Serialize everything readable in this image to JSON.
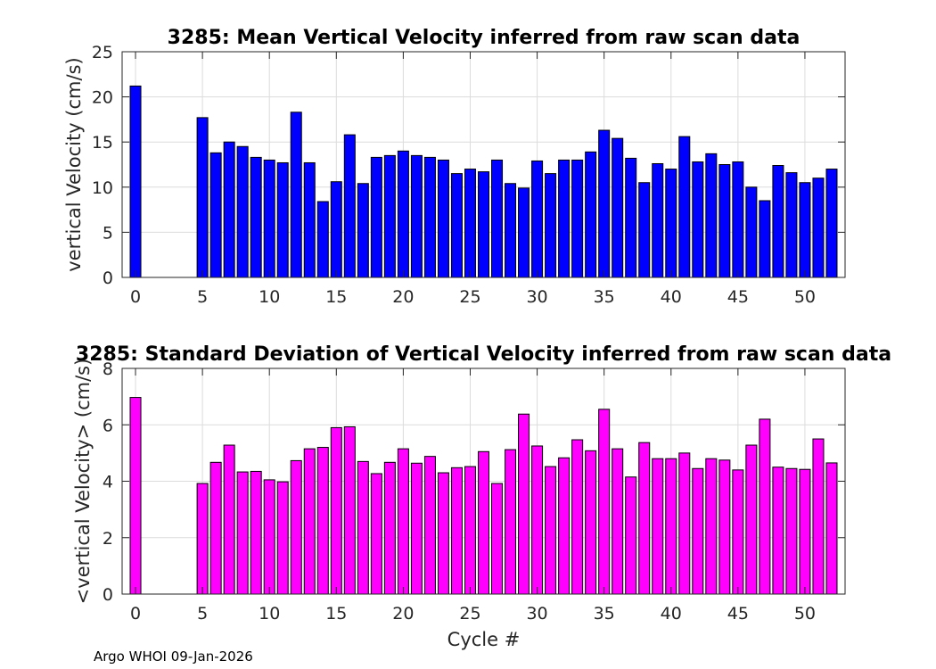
{
  "chart_data": [
    {
      "type": "bar",
      "title": "3285: Mean Vertical Velocity inferred from raw scan data",
      "xlabel": "",
      "ylabel": "vertical Velocity (cm/s)",
      "xlim": [
        -1,
        53
      ],
      "ylim": [
        0,
        25
      ],
      "xticks": [
        0,
        5,
        10,
        15,
        20,
        25,
        30,
        35,
        40,
        45,
        50
      ],
      "yticks": [
        0,
        5,
        10,
        15,
        20,
        25
      ],
      "grid": true,
      "bar_color": "#0000ff",
      "edge_color": "#000000",
      "x": [
        0,
        5,
        6,
        7,
        8,
        9,
        10,
        11,
        12,
        13,
        14,
        15,
        16,
        17,
        18,
        19,
        20,
        21,
        22,
        23,
        24,
        25,
        26,
        27,
        28,
        29,
        30,
        31,
        32,
        33,
        34,
        35,
        36,
        37,
        38,
        39,
        40,
        41,
        42,
        43,
        44,
        45,
        46,
        47,
        48,
        49,
        50,
        51,
        52
      ],
      "values": [
        21.2,
        17.7,
        13.8,
        15.0,
        14.5,
        13.3,
        13.0,
        12.7,
        18.3,
        12.7,
        8.4,
        10.6,
        15.8,
        10.4,
        13.3,
        13.5,
        14.0,
        13.5,
        13.3,
        13.0,
        11.5,
        12.0,
        11.7,
        13.0,
        10.4,
        9.9,
        12.9,
        11.5,
        13.0,
        13.0,
        13.9,
        16.3,
        15.4,
        13.2,
        10.5,
        12.6,
        12.0,
        15.6,
        12.8,
        13.7,
        12.5,
        12.8,
        10.0,
        8.5,
        12.4,
        11.6,
        10.5,
        11.0,
        12.0
      ]
    },
    {
      "type": "bar",
      "title": "3285: Standard Deviation of Vertical Velocity inferred from raw scan data",
      "xlabel": "Cycle #",
      "ylabel": "<vertical Velocity> (cm/s)",
      "xlim": [
        -1,
        53
      ],
      "ylim": [
        0,
        8
      ],
      "xticks": [
        0,
        5,
        10,
        15,
        20,
        25,
        30,
        35,
        40,
        45,
        50
      ],
      "yticks": [
        0,
        2,
        4,
        6,
        8
      ],
      "grid": true,
      "bar_color": "#ff00ff",
      "edge_color": "#000000",
      "x": [
        0,
        5,
        6,
        7,
        8,
        9,
        10,
        11,
        12,
        13,
        14,
        15,
        16,
        17,
        18,
        19,
        20,
        21,
        22,
        23,
        24,
        25,
        26,
        27,
        28,
        29,
        30,
        31,
        32,
        33,
        34,
        35,
        36,
        37,
        38,
        39,
        40,
        41,
        42,
        43,
        44,
        45,
        46,
        47,
        48,
        49,
        50,
        51,
        52
      ],
      "values": [
        6.97,
        3.92,
        4.67,
        5.28,
        4.33,
        4.35,
        4.05,
        3.98,
        4.73,
        5.15,
        5.2,
        5.9,
        5.93,
        4.7,
        4.27,
        4.67,
        5.15,
        4.64,
        4.88,
        4.3,
        4.48,
        4.52,
        5.05,
        3.92,
        5.12,
        6.38,
        5.25,
        4.52,
        4.83,
        5.47,
        5.08,
        6.55,
        5.15,
        4.15,
        5.37,
        4.8,
        4.8,
        5.0,
        4.45,
        4.8,
        4.75,
        4.4,
        5.28,
        6.2,
        4.5,
        4.45,
        4.42,
        5.5,
        4.65
      ]
    }
  ],
  "footer": "Argo WHOI 09-Jan-2026"
}
